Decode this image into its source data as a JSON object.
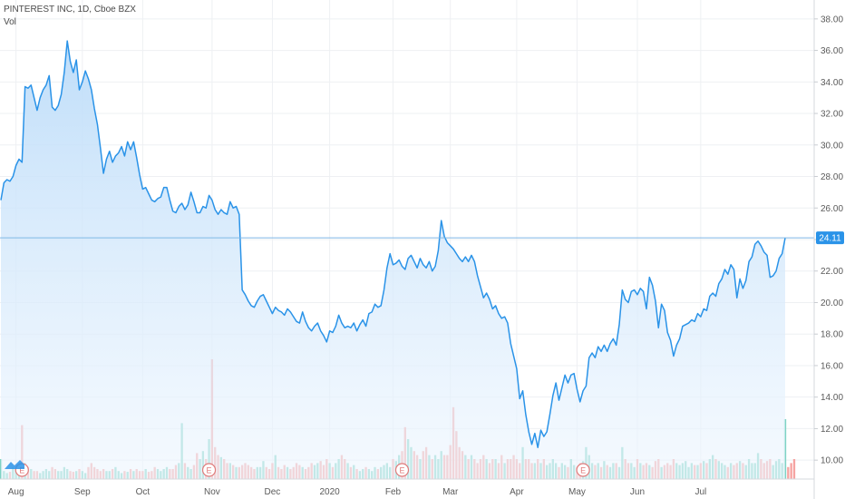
{
  "header": {
    "title": "PINTEREST INC, 1D, Cboe BZX",
    "sub": "Vol"
  },
  "colors": {
    "line": "#2a93e8",
    "fill_top": "#bcdcf9",
    "fill_bottom": "#eef6fe",
    "price_line": "#7fb8e6",
    "price_tag": "#2a93e8",
    "vol_up": "#7fd3c4",
    "vol_down": "#f6a3a1",
    "grid": "#eef0f3",
    "axis_text": "#5a5a5a",
    "earnings": "#e07a7a"
  },
  "icons": [
    "tradingview-logo-icon",
    "earnings-marker-icon"
  ],
  "chart_data": {
    "type": "line",
    "title": "PINTEREST INC, 1D, Cboe BZX",
    "ylabel": "",
    "xlabel": "",
    "ylim": [
      8.8,
      39.2
    ],
    "y_ticks": [
      "10.00",
      "12.00",
      "14.00",
      "16.00",
      "18.00",
      "20.00",
      "22.00",
      "24.00",
      "26.00",
      "28.00",
      "30.00",
      "32.00",
      "34.00",
      "36.00",
      "38.00"
    ],
    "x_ticks": [
      {
        "label": "Aug",
        "index": 5
      },
      {
        "label": "Sep",
        "index": 27
      },
      {
        "label": "Oct",
        "index": 47
      },
      {
        "label": "Nov",
        "index": 70
      },
      {
        "label": "Dec",
        "index": 90
      },
      {
        "label": "2020",
        "index": 109
      },
      {
        "label": "Feb",
        "index": 130
      },
      {
        "label": "Mar",
        "index": 149
      },
      {
        "label": "Apr",
        "index": 171
      },
      {
        "label": "May",
        "index": 191
      },
      {
        "label": "Jun",
        "index": 211
      },
      {
        "label": "Jul",
        "index": 232
      }
    ],
    "last_price": "24.11",
    "earnings_index": [
      7,
      69,
      133,
      193
    ],
    "earnings_label": "E",
    "series": [
      {
        "role": "price",
        "values": [
          26.5,
          27.6,
          27.8,
          27.7,
          28.0,
          28.7,
          29.1,
          28.9,
          33.7,
          33.6,
          33.8,
          33.0,
          32.2,
          33.0,
          33.5,
          33.8,
          34.4,
          32.4,
          32.2,
          32.5,
          33.2,
          34.6,
          36.6,
          35.3,
          34.6,
          35.4,
          33.5,
          34.0,
          34.7,
          34.2,
          33.5,
          32.3,
          31.3,
          29.8,
          28.2,
          29.1,
          29.6,
          28.9,
          29.3,
          29.5,
          29.9,
          29.3,
          30.2,
          29.7,
          30.2,
          29.2,
          28.1,
          27.2,
          27.3,
          26.9,
          26.5,
          26.4,
          26.6,
          26.7,
          27.3,
          27.3,
          26.5,
          25.8,
          25.7,
          26.1,
          26.3,
          25.9,
          26.2,
          27.0,
          26.4,
          25.7,
          25.7,
          26.1,
          26.0,
          26.8,
          26.5,
          25.9,
          25.6,
          25.9,
          25.7,
          25.6,
          26.4,
          26.0,
          26.1,
          25.6,
          20.8,
          20.5,
          20.1,
          19.8,
          19.7,
          20.1,
          20.4,
          20.5,
          20.1,
          19.7,
          19.3,
          19.7,
          19.5,
          19.4,
          19.2,
          19.6,
          19.4,
          19.1,
          18.8,
          18.7,
          19.4,
          18.8,
          18.4,
          18.2,
          18.5,
          18.7,
          18.2,
          17.9,
          17.5,
          18.2,
          18.1,
          18.5,
          19.2,
          18.7,
          18.4,
          18.5,
          18.4,
          18.7,
          18.2,
          18.6,
          18.9,
          18.5,
          19.3,
          19.4,
          19.9,
          19.7,
          19.8,
          20.8,
          22.2,
          23.1,
          22.4,
          22.5,
          22.7,
          22.3,
          22.1,
          22.8,
          23.0,
          22.6,
          22.2,
          22.8,
          22.4,
          22.2,
          22.6,
          22.0,
          22.3,
          23.3,
          25.2,
          24.2,
          23.8,
          23.6,
          23.4,
          23.1,
          22.8,
          22.6,
          22.9,
          22.6,
          23.0,
          22.6,
          21.7,
          21.0,
          20.3,
          20.6,
          20.2,
          19.6,
          19.8,
          19.3,
          19.0,
          19.1,
          18.7,
          17.4,
          16.6,
          15.8,
          13.9,
          14.4,
          12.9,
          11.8,
          11.0,
          11.7,
          10.8,
          11.9,
          11.5,
          11.8,
          12.9,
          14.1,
          14.9,
          13.8,
          14.6,
          15.4,
          14.9,
          15.4,
          15.5,
          14.5,
          13.7,
          14.4,
          14.7,
          16.5,
          16.8,
          16.5,
          17.2,
          16.9,
          17.3,
          16.9,
          17.4,
          17.7,
          17.3,
          18.6,
          20.8,
          20.2,
          20.0,
          20.7,
          20.8,
          20.5,
          20.9,
          20.7,
          19.6,
          21.6,
          21.1,
          20.1,
          18.4,
          19.9,
          19.5,
          18.1,
          17.6,
          16.6,
          17.3,
          17.7,
          18.5,
          18.6,
          18.7,
          18.9,
          18.8,
          19.3,
          19.1,
          19.6,
          19.5,
          20.4,
          20.6,
          20.4,
          21.2,
          21.5,
          22.1,
          21.8,
          22.4,
          22.1,
          20.3,
          21.5,
          20.9,
          21.4,
          22.6,
          22.9,
          23.7,
          23.9,
          23.6,
          23.2,
          23.0,
          21.6,
          21.7,
          22.0,
          22.8,
          23.1,
          24.1
        ]
      },
      {
        "role": "volume",
        "values": [
          5,
          2,
          1.5,
          1.8,
          3,
          2.5,
          2,
          13.5,
          4,
          3,
          2.5,
          2,
          2,
          1.5,
          2,
          2.5,
          2,
          3,
          2.5,
          2,
          2,
          3,
          2.5,
          2,
          1.8,
          2,
          2.5,
          2,
          1.5,
          3,
          4,
          3,
          2.5,
          2,
          2.5,
          2,
          2,
          2.5,
          3,
          2,
          1.5,
          2,
          1.8,
          2.5,
          2,
          2.5,
          2,
          2,
          2.5,
          1.8,
          2,
          3,
          2.5,
          2,
          2.5,
          3,
          2.5,
          2.5,
          3.5,
          4,
          14,
          4,
          3,
          2.5,
          3.5,
          6.5,
          5,
          7,
          5,
          10,
          30,
          8,
          6,
          5.5,
          5,
          4,
          4,
          3.5,
          3,
          3,
          3.5,
          4,
          3.5,
          3,
          2.5,
          3,
          3,
          4.5,
          3,
          2.5,
          4,
          6,
          3,
          2.5,
          3.5,
          3,
          2.5,
          3,
          4,
          3.5,
          3,
          2.5,
          3,
          4,
          3.5,
          4,
          4.5,
          3.5,
          5,
          4,
          3,
          4,
          5,
          6,
          5,
          4,
          3,
          3.5,
          2.5,
          2,
          2.5,
          3,
          2.5,
          2,
          3,
          2.5,
          3,
          3.5,
          4,
          3,
          5,
          4.5,
          6,
          7,
          13,
          10,
          8,
          7,
          6,
          5,
          7,
          8,
          6,
          5,
          6,
          5,
          7,
          6,
          6,
          8.5,
          18,
          12,
          8,
          7,
          6,
          5,
          6,
          5,
          4,
          5,
          6,
          5,
          4,
          5,
          5,
          4,
          6,
          4,
          5,
          5,
          6,
          5,
          4,
          8,
          5,
          5,
          4,
          4,
          5,
          4,
          5,
          3.5,
          4,
          5,
          4,
          3,
          4,
          3.5,
          3,
          5,
          3.5,
          3,
          4,
          4.5,
          8,
          6,
          4,
          3.5,
          4,
          3,
          4.5,
          3.5,
          3,
          4,
          4,
          3,
          8,
          5,
          4,
          4,
          3,
          5,
          4,
          3.5,
          4,
          3.5,
          3,
          4.5,
          5,
          3,
          3.5,
          4,
          3.5,
          5,
          4,
          3.5,
          4,
          4.5,
          3,
          4,
          3.5,
          3.5,
          4,
          4.5,
          4,
          5,
          6,
          5,
          4.5,
          4,
          3.5,
          3,
          4,
          3.5,
          4,
          4.5,
          4,
          3.5,
          5,
          4,
          4,
          6.5,
          5,
          4,
          4.5,
          5,
          3.5,
          4.5,
          5,
          4,
          15,
          3,
          4,
          5
        ]
      }
    ]
  }
}
